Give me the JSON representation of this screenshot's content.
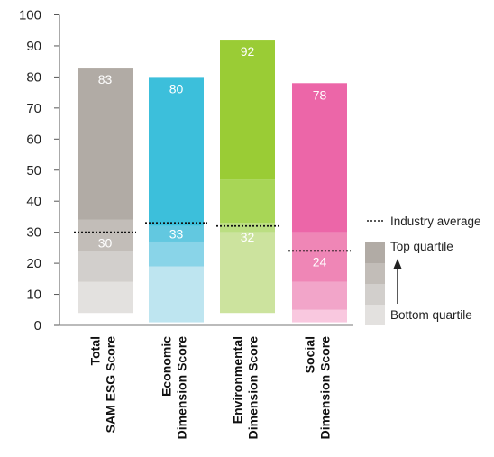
{
  "chart_data": {
    "type": "bar",
    "y_ticks": [
      "0",
      "10",
      "20",
      "30",
      "40",
      "50",
      "60",
      "70",
      "80",
      "90",
      "100"
    ],
    "ylim": [
      0,
      100
    ],
    "categories": [
      {
        "line1": "Total",
        "line2": "SAM ESG Score"
      },
      {
        "line1": "Economic",
        "line2": "Dimension Score"
      },
      {
        "line1": "Environmental",
        "line2": "Dimension Score"
      },
      {
        "line1": "Social",
        "line2": "Dimension Score"
      }
    ],
    "scores": [
      83,
      80,
      92,
      78
    ],
    "industry_average": [
      30,
      33,
      32,
      24
    ],
    "quartile_bounds": [
      [
        4,
        14,
        24,
        34,
        83
      ],
      [
        1,
        19,
        27,
        32,
        80
      ],
      [
        4,
        30,
        33,
        47,
        92
      ],
      [
        1,
        5,
        14,
        30,
        78
      ]
    ],
    "colors": [
      [
        "#e3e1df",
        "#d2cfcc",
        "#c2bdb8",
        "#b1aba5"
      ],
      [
        "#bee5f0",
        "#89d4e8",
        "#62c8e0",
        "#3cbfdb"
      ],
      [
        "#cce39e",
        "#bbde82",
        "#a8d656",
        "#9acc35"
      ],
      [
        "#f9c8df",
        "#f2a5c9",
        "#ef86b6",
        "#ec66a8"
      ]
    ],
    "legend": {
      "industry_average": "Industry average",
      "top_quartile": "Top quartile",
      "bottom_quartile": "Bottom quartile",
      "swatch_colors": [
        "#b1aba5",
        "#c2bdb8",
        "#d2cfcc",
        "#e3e1df"
      ]
    }
  }
}
